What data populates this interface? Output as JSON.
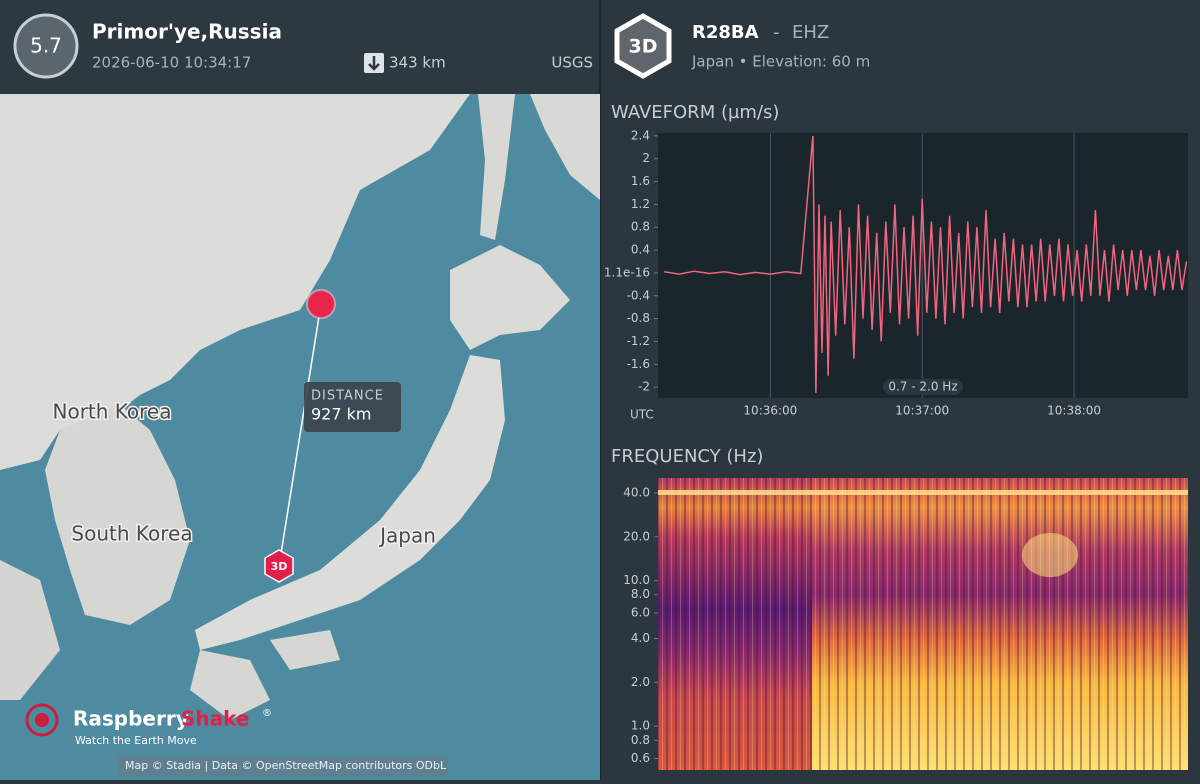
{
  "event": {
    "magnitude": "5.7",
    "location": "Primor'ye,Russia",
    "time": "2026-06-10 10:34:17",
    "depth": "343 km",
    "source": "USGS"
  },
  "station": {
    "badge": "3D",
    "name": "R28BA",
    "separator": "-",
    "channel": "EHZ",
    "info": "Japan • Elevation: 60 m"
  },
  "map": {
    "labels": [
      "North Korea",
      "South Korea",
      "Japan"
    ],
    "distance_label": "DISTANCE",
    "distance": "927 km",
    "station_marker": "3D",
    "brand": "Raspberry",
    "brand_accent": "Shake",
    "brand_mark": "®",
    "tagline": "Watch the Earth Move",
    "attribution": "Map © Stadia | Data © OpenStreetMap contributors ODbL"
  },
  "waveform": {
    "type": "line",
    "title": "WAVEFORM (µm/s)",
    "utc_label": "UTC",
    "band": "0.7 - 2.0 Hz",
    "color": "#f2657e",
    "grid": true,
    "ylim": [
      -2.19,
      2.45
    ],
    "yticks": [
      2.4,
      2,
      1.6,
      1.2,
      0.8,
      0.4,
      1.1e-16,
      -0.4,
      -0.8,
      -1.2,
      -1.6,
      -2
    ],
    "xlim": [
      35.26,
      38.75
    ],
    "xticks": [
      {
        "value": 36,
        "label": "10:36:00"
      },
      {
        "value": 37,
        "label": "10:37:00"
      },
      {
        "value": 38,
        "label": "10:38:00"
      }
    ],
    "x": [
      35.3,
      35.4,
      35.5,
      35.6,
      35.7,
      35.8,
      35.9,
      36.0,
      36.1,
      36.2,
      36.28,
      36.3,
      36.32,
      36.34,
      36.36,
      36.38,
      36.4,
      36.43,
      36.46,
      36.49,
      36.52,
      36.55,
      36.58,
      36.61,
      36.64,
      36.67,
      36.7,
      36.73,
      36.76,
      36.79,
      36.82,
      36.85,
      36.88,
      36.91,
      36.94,
      36.97,
      37.0,
      37.03,
      37.06,
      37.09,
      37.12,
      37.15,
      37.18,
      37.21,
      37.24,
      37.27,
      37.3,
      37.33,
      37.36,
      37.39,
      37.42,
      37.45,
      37.48,
      37.51,
      37.54,
      37.57,
      37.6,
      37.63,
      37.66,
      37.69,
      37.72,
      37.75,
      37.78,
      37.81,
      37.84,
      37.87,
      37.9,
      37.93,
      37.96,
      37.99,
      38.02,
      38.05,
      38.08,
      38.11,
      38.14,
      38.17,
      38.2,
      38.23,
      38.26,
      38.29,
      38.32,
      38.35,
      38.38,
      38.41,
      38.44,
      38.47,
      38.5,
      38.53,
      38.56,
      38.59,
      38.62,
      38.65,
      38.68,
      38.71,
      38.74
    ],
    "values": [
      0.02,
      -0.02,
      0.03,
      -0.01,
      0.02,
      -0.03,
      0.01,
      -0.02,
      0.02,
      -0.01,
      2.4,
      -2.1,
      1.2,
      -1.4,
      1.0,
      -1.8,
      0.9,
      -1.1,
      1.1,
      -0.9,
      0.8,
      -1.5,
      1.2,
      -0.8,
      1.0,
      -1.0,
      0.7,
      -1.2,
      0.9,
      -0.7,
      1.2,
      -0.9,
      0.8,
      -0.8,
      1.0,
      -1.1,
      1.3,
      -0.7,
      0.9,
      -0.8,
      0.8,
      -0.9,
      1.0,
      -0.7,
      0.7,
      -0.8,
      0.9,
      -0.6,
      0.8,
      -0.7,
      1.1,
      -0.6,
      0.6,
      -0.7,
      0.7,
      -0.5,
      0.6,
      -0.6,
      0.5,
      -0.6,
      0.5,
      -0.5,
      0.6,
      -0.5,
      0.5,
      -0.4,
      0.6,
      -0.5,
      0.5,
      -0.4,
      0.4,
      -0.5,
      0.5,
      -0.4,
      1.1,
      -0.4,
      0.4,
      -0.5,
      0.5,
      -0.3,
      0.4,
      -0.4,
      0.4,
      -0.3,
      0.4,
      -0.3,
      0.3,
      -0.4,
      0.4,
      -0.3,
      0.3,
      -0.3,
      0.4,
      -0.3,
      0.2
    ]
  },
  "frequency": {
    "type": "spectrogram",
    "title": "FREQUENCY (Hz)",
    "log_scale": true,
    "ylim": [
      0.5,
      50.7
    ],
    "yticks": [
      {
        "value": 40,
        "label": "40.0"
      },
      {
        "value": 20,
        "label": "20.0"
      },
      {
        "value": 10,
        "label": "10.0"
      },
      {
        "value": 8,
        "label": "8.0"
      },
      {
        "value": 6,
        "label": "6.0"
      },
      {
        "value": 4,
        "label": "4.0"
      },
      {
        "value": 2,
        "label": "2.0"
      },
      {
        "value": 1,
        "label": "1.0"
      },
      {
        "value": 0.8,
        "label": "0.8"
      },
      {
        "value": 0.6,
        "label": "0.6"
      }
    ]
  }
}
